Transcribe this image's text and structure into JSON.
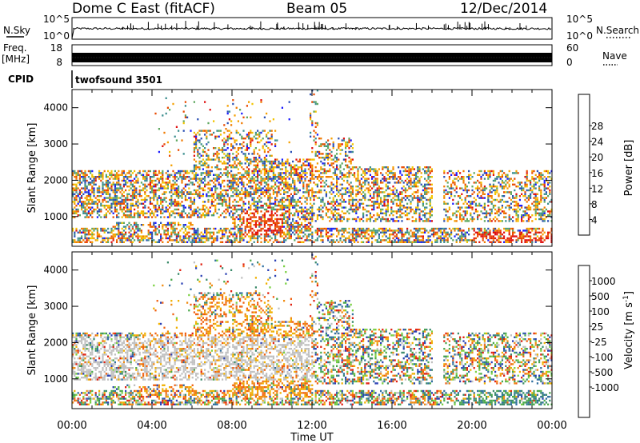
{
  "header": {
    "station": "Dome C East (fitACF)",
    "beam": "Beam 05",
    "date": "12/Dec/2014"
  },
  "top_panels": {
    "nsky_label": "N.Sky",
    "nsky_tick_top": "10^5",
    "nsky_tick_bottom": "10^0",
    "nsearch_label": "N.Search",
    "nsearch_tick_top": "10^5",
    "nsearch_tick_bottom": "10^0",
    "freq_label": "Freq.",
    "freq_unit": "[MHz]",
    "freq_tick_top": "18",
    "freq_tick_bottom": "8",
    "nave_label": "Nave",
    "nave_tick_top": "60",
    "nave_tick_bottom": "0",
    "cpid_label": "CPID",
    "cpid_value": "twofsound 3501"
  },
  "chart_data": [
    {
      "type": "heatmap",
      "panel": "power",
      "xlabel": "Time UT",
      "ylabel": "Slant Range [km]",
      "xlim": [
        "00:00",
        "24:00"
      ],
      "ylim": [
        180,
        4500
      ],
      "xticks": [
        "00:00",
        "04:00",
        "08:00",
        "12:00",
        "16:00",
        "20:00",
        "00:00"
      ],
      "yticks": [
        1000,
        2000,
        3000,
        4000
      ],
      "colorbar": {
        "label": "Power [dB]",
        "ticks": [
          4,
          8,
          12,
          16,
          20,
          24,
          28
        ],
        "range": [
          0,
          30
        ],
        "colors": [
          "#1a1aff",
          "#2a4fb4",
          "#3d8f8f",
          "#5fa860",
          "#f2c400",
          "#f5a000",
          "#f07a00",
          "#e84a00",
          "#e01010"
        ]
      },
      "data_description_regions": [
        {
          "t_start": 0.0,
          "t_end": 24.0,
          "range_start": 300,
          "range_end": 2300,
          "power_db": [
            4,
            30
          ]
        },
        {
          "t_start": 8.5,
          "t_end": 10.5,
          "range_start": 500,
          "range_end": 1200,
          "power_db": [
            24,
            30
          ]
        },
        {
          "t_start": 20.0,
          "t_end": 24.0,
          "range_start": 300,
          "range_end": 600,
          "power_db": [
            24,
            30
          ]
        }
      ]
    },
    {
      "type": "heatmap",
      "panel": "velocity",
      "xlabel": "Time UT",
      "ylabel": "Slant Range [km]",
      "xlim": [
        "00:00",
        "24:00"
      ],
      "ylim": [
        180,
        4500
      ],
      "xticks": [
        "00:00",
        "04:00",
        "08:00",
        "12:00",
        "16:00",
        "20:00",
        "00:00"
      ],
      "yticks": [
        1000,
        2000,
        3000,
        4000
      ],
      "colorbar": {
        "label": "Velocity [m s^-1]",
        "ticks": [
          "1000",
          "500",
          "100",
          "25",
          "-25",
          "-100",
          "-500",
          "-1000"
        ],
        "colors": [
          "#2a3fb4",
          "#2f6fa0",
          "#3a8a6a",
          "#4aa84a",
          "#7ad040",
          "#c0c0c0",
          "#f0b000",
          "#f08a10",
          "#f06010",
          "#e02010"
        ]
      },
      "data_description_regions": [
        {
          "t_start": 0.0,
          "t_end": 12.0,
          "range_start": 1000,
          "range_end": 2200,
          "velocity_ms": [
            -25,
            25
          ]
        },
        {
          "t_start": 3.0,
          "t_end": 12.0,
          "range_start": 500,
          "range_end": 3300,
          "velocity_ms": [
            -500,
            -100
          ]
        },
        {
          "t_start": 19.0,
          "t_end": 24.0,
          "range_start": 300,
          "range_end": 900,
          "velocity_ms": [
            100,
            500
          ]
        }
      ]
    }
  ]
}
